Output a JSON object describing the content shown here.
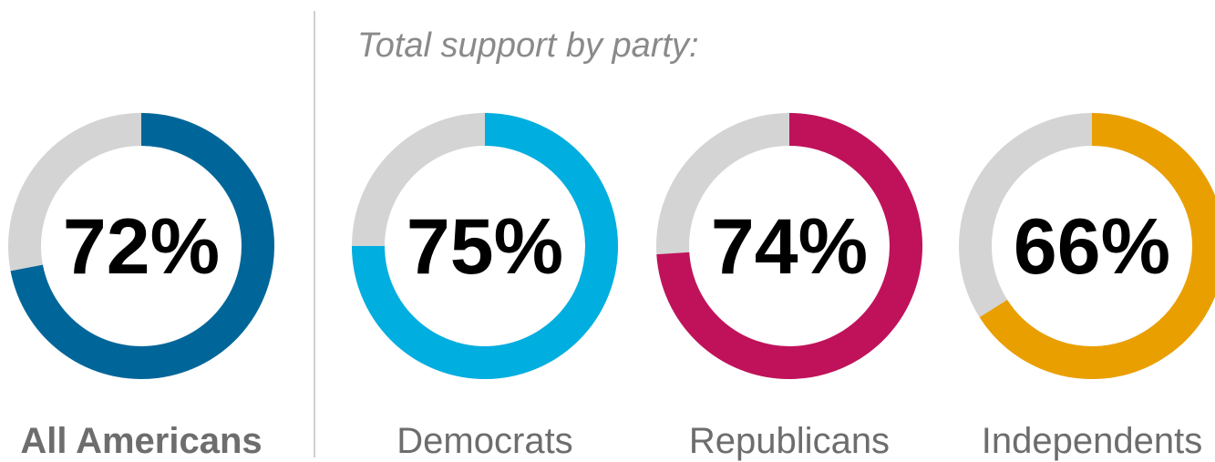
{
  "chart_data": {
    "type": "donut",
    "subtitle": "Total support by party:",
    "track_color": "#d4d4d4",
    "series": [
      {
        "name": "All Americans",
        "value": 72,
        "label": "72%",
        "color": "#006699",
        "emphasis": true
      },
      {
        "name": "Democrats",
        "value": 75,
        "label": "75%",
        "color": "#00aee0",
        "emphasis": false
      },
      {
        "name": "Republicans",
        "value": 74,
        "label": "74%",
        "color": "#c0125a",
        "emphasis": false
      },
      {
        "name": "Independents",
        "value": 66,
        "label": "66%",
        "color": "#ea9f00",
        "emphasis": false
      }
    ]
  }
}
